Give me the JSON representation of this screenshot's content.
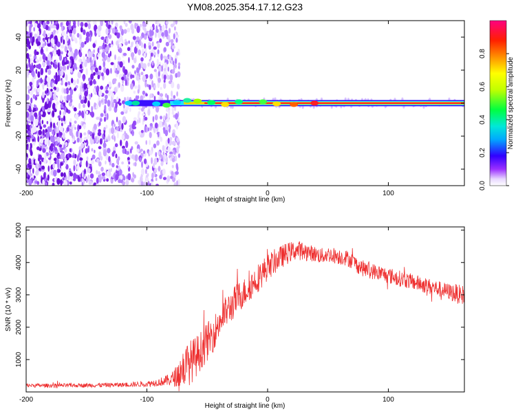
{
  "title": "YM08.2025.354.17.12.G23",
  "chart_data": [
    {
      "type": "heatmap",
      "name": "spectrogram",
      "xlabel": "Height of straight line (km)",
      "ylabel": "Frequency (Hz)",
      "xlim": [
        -200,
        163
      ],
      "ylim": [
        -50,
        50
      ],
      "x_ticks": [
        -200,
        -100,
        0,
        100
      ],
      "x_tick_labels": [
        "-200",
        "-100",
        "0",
        "100"
      ],
      "y_ticks": [
        -40,
        -20,
        0,
        20,
        40
      ],
      "y_tick_labels": [
        "-40",
        "-20",
        "0",
        "20",
        "40"
      ],
      "colorbar": {
        "label": "Normalized spectral amplitude",
        "range": [
          0,
          1
        ],
        "ticks": [
          0,
          0.2,
          0.4,
          0.6,
          0.8
        ],
        "tick_labels": [
          "0.0",
          "0.2",
          "0.4",
          "0.6",
          "0.8"
        ]
      },
      "features": {
        "noise_region_x": [
          -200,
          -80
        ],
        "carrier_start_x": -115,
        "carrier_frequency": 0,
        "carrier_color": "#ff2020",
        "noise_color": "#7a22e6"
      }
    },
    {
      "type": "line",
      "name": "snr",
      "xlabel": "Height of straight line (km)",
      "ylabel": "SNR (10 * v/v)",
      "xlim": [
        -200,
        163
      ],
      "ylim": [
        0,
        5100
      ],
      "x_ticks": [
        -200,
        -100,
        0,
        100
      ],
      "x_tick_labels": [
        "-200",
        "-100",
        "0",
        "100"
      ],
      "y_ticks": [
        1000,
        2000,
        3000,
        4000,
        5000
      ],
      "y_tick_labels": [
        "1000",
        "2000",
        "3000",
        "4000",
        "5000"
      ],
      "line_color": "#ee3030",
      "x": [
        -200,
        -180,
        -160,
        -140,
        -120,
        -100,
        -90,
        -80,
        -75,
        -70,
        -65,
        -60,
        -55,
        -50,
        -45,
        -40,
        -35,
        -30,
        -25,
        -20,
        -15,
        -10,
        -5,
        0,
        5,
        10,
        15,
        20,
        25,
        30,
        35,
        40,
        45,
        50,
        55,
        60,
        65,
        70,
        75,
        80,
        85,
        90,
        95,
        100,
        105,
        110,
        115,
        120,
        125,
        130,
        135,
        140,
        145,
        150,
        155,
        160,
        163
      ],
      "y": [
        200,
        200,
        200,
        210,
        220,
        250,
        300,
        380,
        500,
        750,
        900,
        1050,
        1300,
        1550,
        1800,
        2150,
        2450,
        2650,
        2900,
        3050,
        3250,
        3450,
        3650,
        3850,
        4000,
        4150,
        4250,
        4350,
        4380,
        4350,
        4300,
        4250,
        4200,
        4250,
        4220,
        4180,
        4150,
        4050,
        3900,
        3800,
        3750,
        3700,
        3650,
        3600,
        3550,
        3500,
        3450,
        3400,
        3350,
        3300,
        3250,
        3200,
        3150,
        3100,
        3050,
        3000,
        3000
      ],
      "noise_amplitude": [
        60,
        60,
        60,
        70,
        70,
        90,
        120,
        200,
        350,
        600,
        700,
        650,
        600,
        600,
        550,
        500,
        500,
        500,
        500,
        450,
        450,
        450,
        450,
        400,
        400,
        350,
        350,
        300,
        300,
        300,
        250,
        250,
        250,
        250,
        250,
        250,
        250,
        250,
        250,
        250,
        250,
        250,
        250,
        250,
        250,
        250,
        250,
        250,
        250,
        250,
        250,
        250,
        250,
        250,
        300,
        300,
        300
      ]
    }
  ]
}
